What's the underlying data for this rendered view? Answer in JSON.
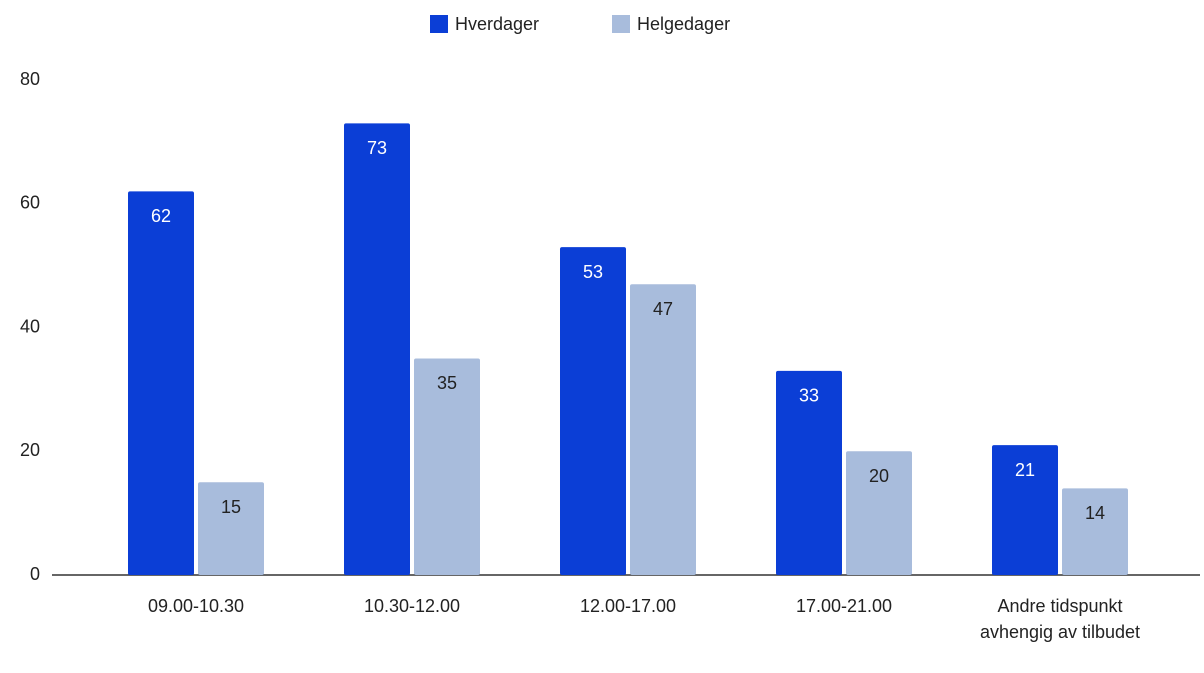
{
  "chart_data": {
    "type": "bar",
    "categories": [
      "09.00-10.30",
      "10.30-12.00",
      "12.00-17.00",
      "17.00-21.00",
      "Andre tidspunkt avhengig av tilbudet"
    ],
    "series": [
      {
        "name": "Hverdager",
        "color": "#0b3ed6",
        "values": [
          62,
          73,
          53,
          33,
          21
        ]
      },
      {
        "name": "Helgedager",
        "color": "#a8bcdc",
        "values": [
          15,
          35,
          47,
          20,
          14
        ]
      }
    ],
    "ylim": [
      0,
      80
    ],
    "yticks": [
      0,
      20,
      40,
      60,
      80
    ],
    "grid": false,
    "legend": "top"
  }
}
